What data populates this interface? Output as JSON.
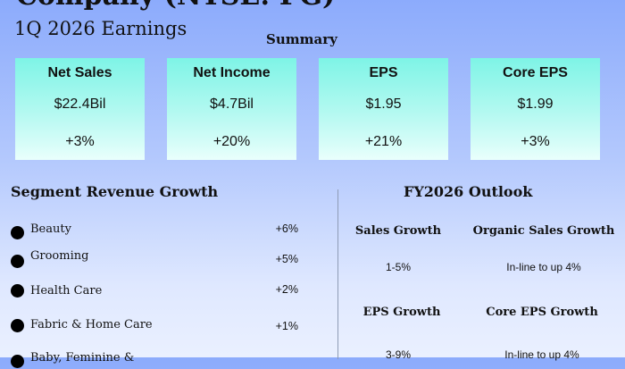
{
  "header": {
    "title": "Company (NYSE: PG)",
    "subtitle": "1Q 2026 Earnings",
    "summary_label": "Summary"
  },
  "cards": [
    {
      "label": "Net Sales",
      "value": "$22.4Bil",
      "change": "+3%"
    },
    {
      "label": "Net Income",
      "value": "$4.7Bil",
      "change": "+20%"
    },
    {
      "label": "EPS",
      "value": "$1.95",
      "change": "+21%"
    },
    {
      "label": "Core EPS",
      "value": "$1.99",
      "change": "+3%"
    }
  ],
  "segments": {
    "title": "Segment Revenue Growth",
    "items": [
      {
        "name": "Beauty",
        "growth": "+6%"
      },
      {
        "name": "Grooming",
        "growth": "+5%"
      },
      {
        "name": "Health Care",
        "growth": "+2%"
      },
      {
        "name": "Fabric & Home Care",
        "growth": "+1%"
      },
      {
        "name": "Baby, Feminine &",
        "growth": ""
      }
    ]
  },
  "outlook": {
    "title": "FY2026 Outlook",
    "items": [
      {
        "label": "Sales Growth",
        "value": "1-5%"
      },
      {
        "label": "Organic Sales Growth",
        "value": "In-line to up 4%"
      },
      {
        "label": "EPS Growth",
        "value": "3-9%"
      },
      {
        "label": "Core EPS Growth",
        "value": "In-line to up 4%"
      }
    ]
  }
}
